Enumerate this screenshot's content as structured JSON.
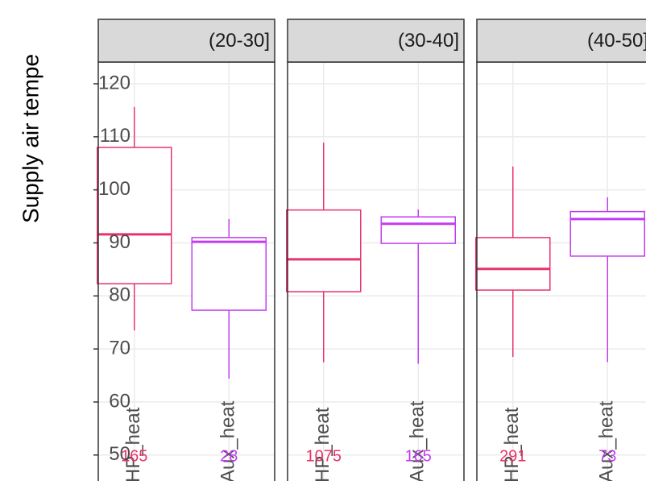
{
  "chart_data": {
    "type": "box",
    "y_label": "Supply air tempe",
    "ylim": [
      45.1,
      124.1
    ],
    "yticks": [
      50,
      60,
      70,
      80,
      90,
      100,
      110,
      120
    ],
    "grid": true,
    "colors": [
      "#e8336b",
      "#c13cf0"
    ],
    "facets": [
      {
        "title": "(20-30]",
        "categories": [
          "HP_heat",
          "Aux_heat"
        ],
        "counts": [
          "165",
          "28"
        ],
        "boxes": [
          {
            "min": 73.5,
            "q1": 82.3,
            "median": 91.6,
            "q3": 108,
            "max": 115.6
          },
          {
            "min": 64.4,
            "q1": 77.3,
            "median": 90.2,
            "q3": 91,
            "max": 94.5
          }
        ]
      },
      {
        "title": "(30-40]",
        "categories": [
          "HP_heat",
          "Aux_heat"
        ],
        "counts": [
          "1075",
          "165"
        ],
        "boxes": [
          {
            "min": 67.5,
            "q1": 80.8,
            "median": 86.9,
            "q3": 96.2,
            "max": 108.9
          },
          {
            "min": 67.2,
            "q1": 89.9,
            "median": 93.6,
            "q3": 94.9,
            "max": 96.3
          }
        ]
      },
      {
        "title": "(40-50]",
        "categories": [
          "HP_heat",
          "Aux_heat"
        ],
        "counts": [
          "291",
          "73"
        ],
        "boxes": [
          {
            "min": 68.5,
            "q1": 81.1,
            "median": 85.1,
            "q3": 91,
            "max": 104.4
          },
          {
            "min": 67.5,
            "q1": 87.5,
            "median": 94.5,
            "q3": 95.9,
            "max": 98.6
          }
        ]
      }
    ]
  }
}
